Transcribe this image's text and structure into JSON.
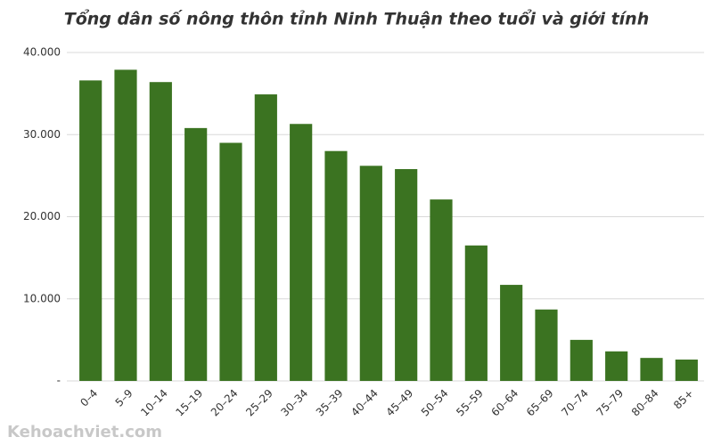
{
  "chart_data": {
    "type": "bar",
    "title": "Tổng dân số nông thôn tỉnh Ninh Thuận theo tuổi và giới tính",
    "categories": [
      "0–4",
      "5–9",
      "10–14",
      "15–19",
      "20–24",
      "25–29",
      "30–34",
      "35–39",
      "40–44",
      "45–49",
      "50–54",
      "55–59",
      "60–64",
      "65–69",
      "70–74",
      "75–79",
      "80–84",
      "85+"
    ],
    "values": [
      36600,
      37900,
      36400,
      30800,
      29000,
      34900,
      31300,
      28000,
      26200,
      25800,
      22100,
      16500,
      11700,
      8700,
      5000,
      3600,
      2800,
      2600
    ],
    "color": "#3b7321",
    "ylim": [
      0,
      40000
    ],
    "yticks": [
      {
        "value": 0,
        "label": "-"
      },
      {
        "value": 10000,
        "label": "10.000"
      },
      {
        "value": 20000,
        "label": "20.000"
      },
      {
        "value": 30000,
        "label": "30.000"
      },
      {
        "value": 40000,
        "label": "40.000"
      }
    ],
    "grid": true,
    "watermark": "Kehoachviet.com"
  }
}
